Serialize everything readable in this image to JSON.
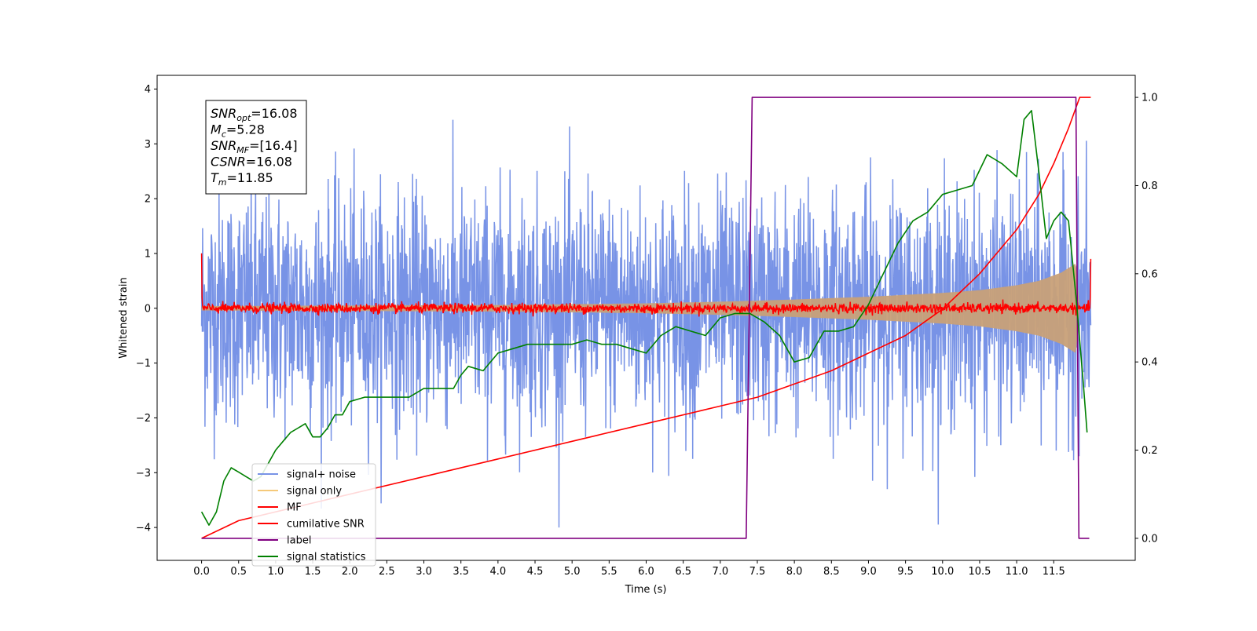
{
  "chart_data": {
    "type": "line",
    "xlabel": "Time (s)",
    "ylabel": "Whitened strain",
    "xlim": [
      -0.6,
      12.6
    ],
    "ylim": [
      -4.6,
      4.25
    ],
    "y2lim": [
      -0.05,
      1.05
    ],
    "x_ticks": [
      "0.0",
      "0.5",
      "1.0",
      "1.5",
      "2.0",
      "2.5",
      "3.0",
      "3.5",
      "4.0",
      "4.5",
      "5.0",
      "5.5",
      "6.0",
      "6.5",
      "7.0",
      "7.5",
      "8.0",
      "8.5",
      "9.0",
      "9.5",
      "10.0",
      "10.5",
      "11.0",
      "11.5"
    ],
    "y_ticks": [
      "4",
      "3",
      "2",
      "1",
      "0",
      "−1",
      "−2",
      "−3",
      "−4"
    ],
    "y2_ticks": [
      "1.0",
      "0.8",
      "0.6",
      "0.4",
      "0.2",
      "0.0"
    ],
    "info_box": [
      {
        "name": "SNR",
        "sub": "opt",
        "value": "=16.08"
      },
      {
        "name": "M",
        "sub": "c",
        "value": "=5.28"
      },
      {
        "name": "SNR",
        "sub": "MF",
        "value": "=[16.4]"
      },
      {
        "name": "CSNR",
        "sub": "",
        "value": "=16.08"
      },
      {
        "name": "T",
        "sub": "m",
        "value": "=11.85"
      }
    ],
    "legend": {
      "placement": "lower-left",
      "entries": [
        {
          "label": "signal+ noise",
          "color": "#7893e6"
        },
        {
          "label": "signal only",
          "color": "#f5c97a"
        },
        {
          "label": "MF",
          "color": "#ff0000"
        },
        {
          "label": "cumilative SNR",
          "color": "#ff0000"
        },
        {
          "label": "label",
          "color": "#800080"
        },
        {
          "label": "signal statistics",
          "color": "#008000"
        }
      ]
    },
    "series": [
      {
        "name": "signal+ noise",
        "axis": "left",
        "color": "#7893e6",
        "x_range": [
          0,
          12
        ],
        "approx_band": [
          -3.0,
          3.1
        ],
        "peak_range": [
          -4.0,
          3.85
        ]
      },
      {
        "name": "signal only",
        "axis": "left",
        "color": "#c8a078",
        "x_range": [
          0,
          12
        ],
        "envelope_x": [
          0,
          4,
          6,
          7,
          8,
          9,
          10,
          10.5,
          11,
          11.3,
          11.6,
          11.8,
          11.85
        ],
        "envelope_y": [
          0.04,
          0.06,
          0.09,
          0.12,
          0.16,
          0.21,
          0.28,
          0.33,
          0.42,
          0.5,
          0.65,
          0.82,
          0.0
        ]
      },
      {
        "name": "MF",
        "axis": "left",
        "color": "#ff0000",
        "x_range": [
          0,
          12
        ],
        "approx_level": 0.0,
        "spread": 0.1
      },
      {
        "name": "cumilative SNR",
        "axis": "right",
        "color": "#ff0000",
        "x": [
          0,
          0.5,
          1,
          2,
          3,
          4,
          5,
          6,
          7,
          7.5,
          8,
          8.5,
          9,
          9.5,
          10,
          10.5,
          11,
          11.3,
          11.5,
          11.7,
          11.85,
          12
        ],
        "y": [
          0.0,
          0.04,
          0.06,
          0.1,
          0.14,
          0.18,
          0.22,
          0.26,
          0.3,
          0.32,
          0.35,
          0.38,
          0.42,
          0.46,
          0.52,
          0.6,
          0.7,
          0.78,
          0.85,
          0.93,
          1.0,
          1.0
        ]
      },
      {
        "name": "label",
        "axis": "right",
        "color": "#800080",
        "x": [
          0,
          7.35,
          7.43,
          11.8,
          11.84,
          11.98
        ],
        "y": [
          0,
          0,
          1,
          1,
          0,
          0
        ]
      },
      {
        "name": "signal statistics",
        "axis": "right",
        "color": "#008000",
        "x": [
          0,
          0.1,
          0.2,
          0.3,
          0.4,
          0.5,
          0.6,
          0.7,
          0.8,
          0.9,
          1.0,
          1.1,
          1.2,
          1.3,
          1.4,
          1.5,
          1.6,
          1.7,
          1.8,
          1.9,
          2.0,
          2.2,
          2.4,
          2.6,
          2.8,
          3.0,
          3.2,
          3.4,
          3.5,
          3.6,
          3.8,
          4.0,
          4.2,
          4.4,
          4.6,
          4.8,
          5.0,
          5.2,
          5.4,
          5.6,
          5.8,
          6.0,
          6.2,
          6.4,
          6.6,
          6.8,
          7.0,
          7.2,
          7.4,
          7.6,
          7.8,
          8.0,
          8.2,
          8.4,
          8.6,
          8.8,
          9.0,
          9.2,
          9.4,
          9.6,
          9.8,
          10.0,
          10.2,
          10.4,
          10.6,
          10.8,
          11.0,
          11.1,
          11.2,
          11.3,
          11.4,
          11.5,
          11.6,
          11.7,
          11.8,
          11.9,
          11.95
        ],
        "y": [
          0.06,
          0.03,
          0.06,
          0.13,
          0.16,
          0.15,
          0.14,
          0.13,
          0.14,
          0.17,
          0.2,
          0.22,
          0.24,
          0.25,
          0.26,
          0.23,
          0.23,
          0.25,
          0.28,
          0.28,
          0.31,
          0.32,
          0.32,
          0.32,
          0.32,
          0.34,
          0.34,
          0.34,
          0.37,
          0.39,
          0.38,
          0.42,
          0.43,
          0.44,
          0.44,
          0.44,
          0.44,
          0.45,
          0.44,
          0.44,
          0.43,
          0.42,
          0.46,
          0.48,
          0.47,
          0.46,
          0.5,
          0.51,
          0.51,
          0.49,
          0.46,
          0.4,
          0.41,
          0.47,
          0.47,
          0.48,
          0.53,
          0.6,
          0.67,
          0.72,
          0.74,
          0.78,
          0.79,
          0.8,
          0.87,
          0.85,
          0.82,
          0.95,
          0.97,
          0.83,
          0.68,
          0.72,
          0.74,
          0.72,
          0.55,
          0.35,
          0.24
        ]
      }
    ]
  }
}
